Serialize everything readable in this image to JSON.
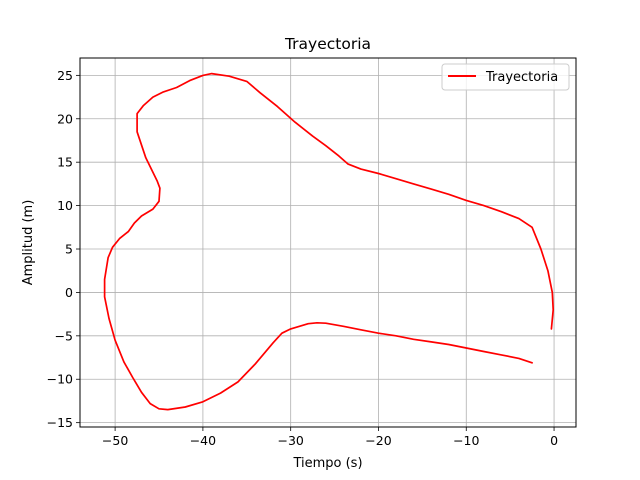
{
  "chart_data": {
    "type": "line",
    "title": "Trayectoria",
    "xlabel": "Tiempo (s)",
    "ylabel": "Amplitud (m)",
    "xlim": [
      -54,
      2.5
    ],
    "ylim": [
      -15.5,
      27
    ],
    "xticks": [
      -50,
      -40,
      -30,
      -20,
      -10,
      0
    ],
    "yticks": [
      -15,
      -10,
      -5,
      0,
      5,
      10,
      15,
      20,
      25
    ],
    "xtick_labels": [
      "−50",
      "−40",
      "−30",
      "−20",
      "−10",
      "0"
    ],
    "ytick_labels": [
      "−15",
      "−10",
      "−5",
      "0",
      "5",
      "10",
      "15",
      "20",
      "25"
    ],
    "grid": true,
    "legend": {
      "position": "top-right",
      "entries": [
        "Trayectoria"
      ]
    },
    "colors": {
      "series": "#ff0000",
      "grid": "#b0b0b0"
    },
    "series": [
      {
        "name": "Trayectoria",
        "points": [
          [
            -2.5,
            -8.1
          ],
          [
            -4,
            -7.6
          ],
          [
            -6,
            -7.2
          ],
          [
            -8,
            -6.8
          ],
          [
            -10,
            -6.4
          ],
          [
            -12,
            -6.0
          ],
          [
            -14,
            -5.7
          ],
          [
            -16,
            -5.4
          ],
          [
            -18,
            -5.0
          ],
          [
            -20,
            -4.7
          ],
          [
            -22,
            -4.3
          ],
          [
            -24,
            -3.9
          ],
          [
            -26,
            -3.55
          ],
          [
            -27,
            -3.5
          ],
          [
            -28,
            -3.6
          ],
          [
            -30,
            -4.2
          ],
          [
            -31,
            -4.7
          ],
          [
            -32,
            -5.8
          ],
          [
            -34,
            -8.2
          ],
          [
            -36,
            -10.3
          ],
          [
            -38,
            -11.6
          ],
          [
            -40,
            -12.6
          ],
          [
            -42,
            -13.2
          ],
          [
            -44,
            -13.5
          ],
          [
            -45,
            -13.4
          ],
          [
            -46,
            -12.8
          ],
          [
            -47,
            -11.5
          ],
          [
            -48,
            -9.8
          ],
          [
            -49,
            -8.0
          ],
          [
            -50,
            -5.5
          ],
          [
            -50.7,
            -3.0
          ],
          [
            -51.2,
            -0.5
          ],
          [
            -51.2,
            1.5
          ],
          [
            -50.8,
            4.0
          ],
          [
            -50.3,
            5.2
          ],
          [
            -49.5,
            6.2
          ],
          [
            -48.5,
            7.0
          ],
          [
            -47.8,
            8.0
          ],
          [
            -47,
            8.8
          ],
          [
            -45.7,
            9.6
          ],
          [
            -45.0,
            10.5
          ],
          [
            -44.9,
            12.0
          ],
          [
            -45.2,
            12.8
          ],
          [
            -46.5,
            15.5
          ],
          [
            -47.5,
            18.5
          ],
          [
            -47.5,
            20.6
          ],
          [
            -46.8,
            21.5
          ],
          [
            -45.7,
            22.5
          ],
          [
            -44.5,
            23.1
          ],
          [
            -43,
            23.6
          ],
          [
            -41.5,
            24.4
          ],
          [
            -40,
            25.0
          ],
          [
            -39,
            25.2
          ],
          [
            -37,
            24.9
          ],
          [
            -35,
            24.3
          ],
          [
            -33.5,
            23.0
          ],
          [
            -31.5,
            21.4
          ],
          [
            -29.5,
            19.6
          ],
          [
            -27.5,
            18.0
          ],
          [
            -26,
            16.9
          ],
          [
            -24.5,
            15.7
          ],
          [
            -23.5,
            14.8
          ],
          [
            -22,
            14.2
          ],
          [
            -20,
            13.7
          ],
          [
            -18,
            13.1
          ],
          [
            -16,
            12.5
          ],
          [
            -14,
            11.9
          ],
          [
            -12,
            11.3
          ],
          [
            -10,
            10.6
          ],
          [
            -8,
            10.0
          ],
          [
            -6,
            9.3
          ],
          [
            -4,
            8.5
          ],
          [
            -2.5,
            7.5
          ],
          [
            -1.5,
            5.0
          ],
          [
            -0.7,
            2.5
          ],
          [
            -0.2,
            0.0
          ],
          [
            -0.1,
            -2.0
          ],
          [
            -0.3,
            -4.2
          ]
        ]
      }
    ]
  }
}
